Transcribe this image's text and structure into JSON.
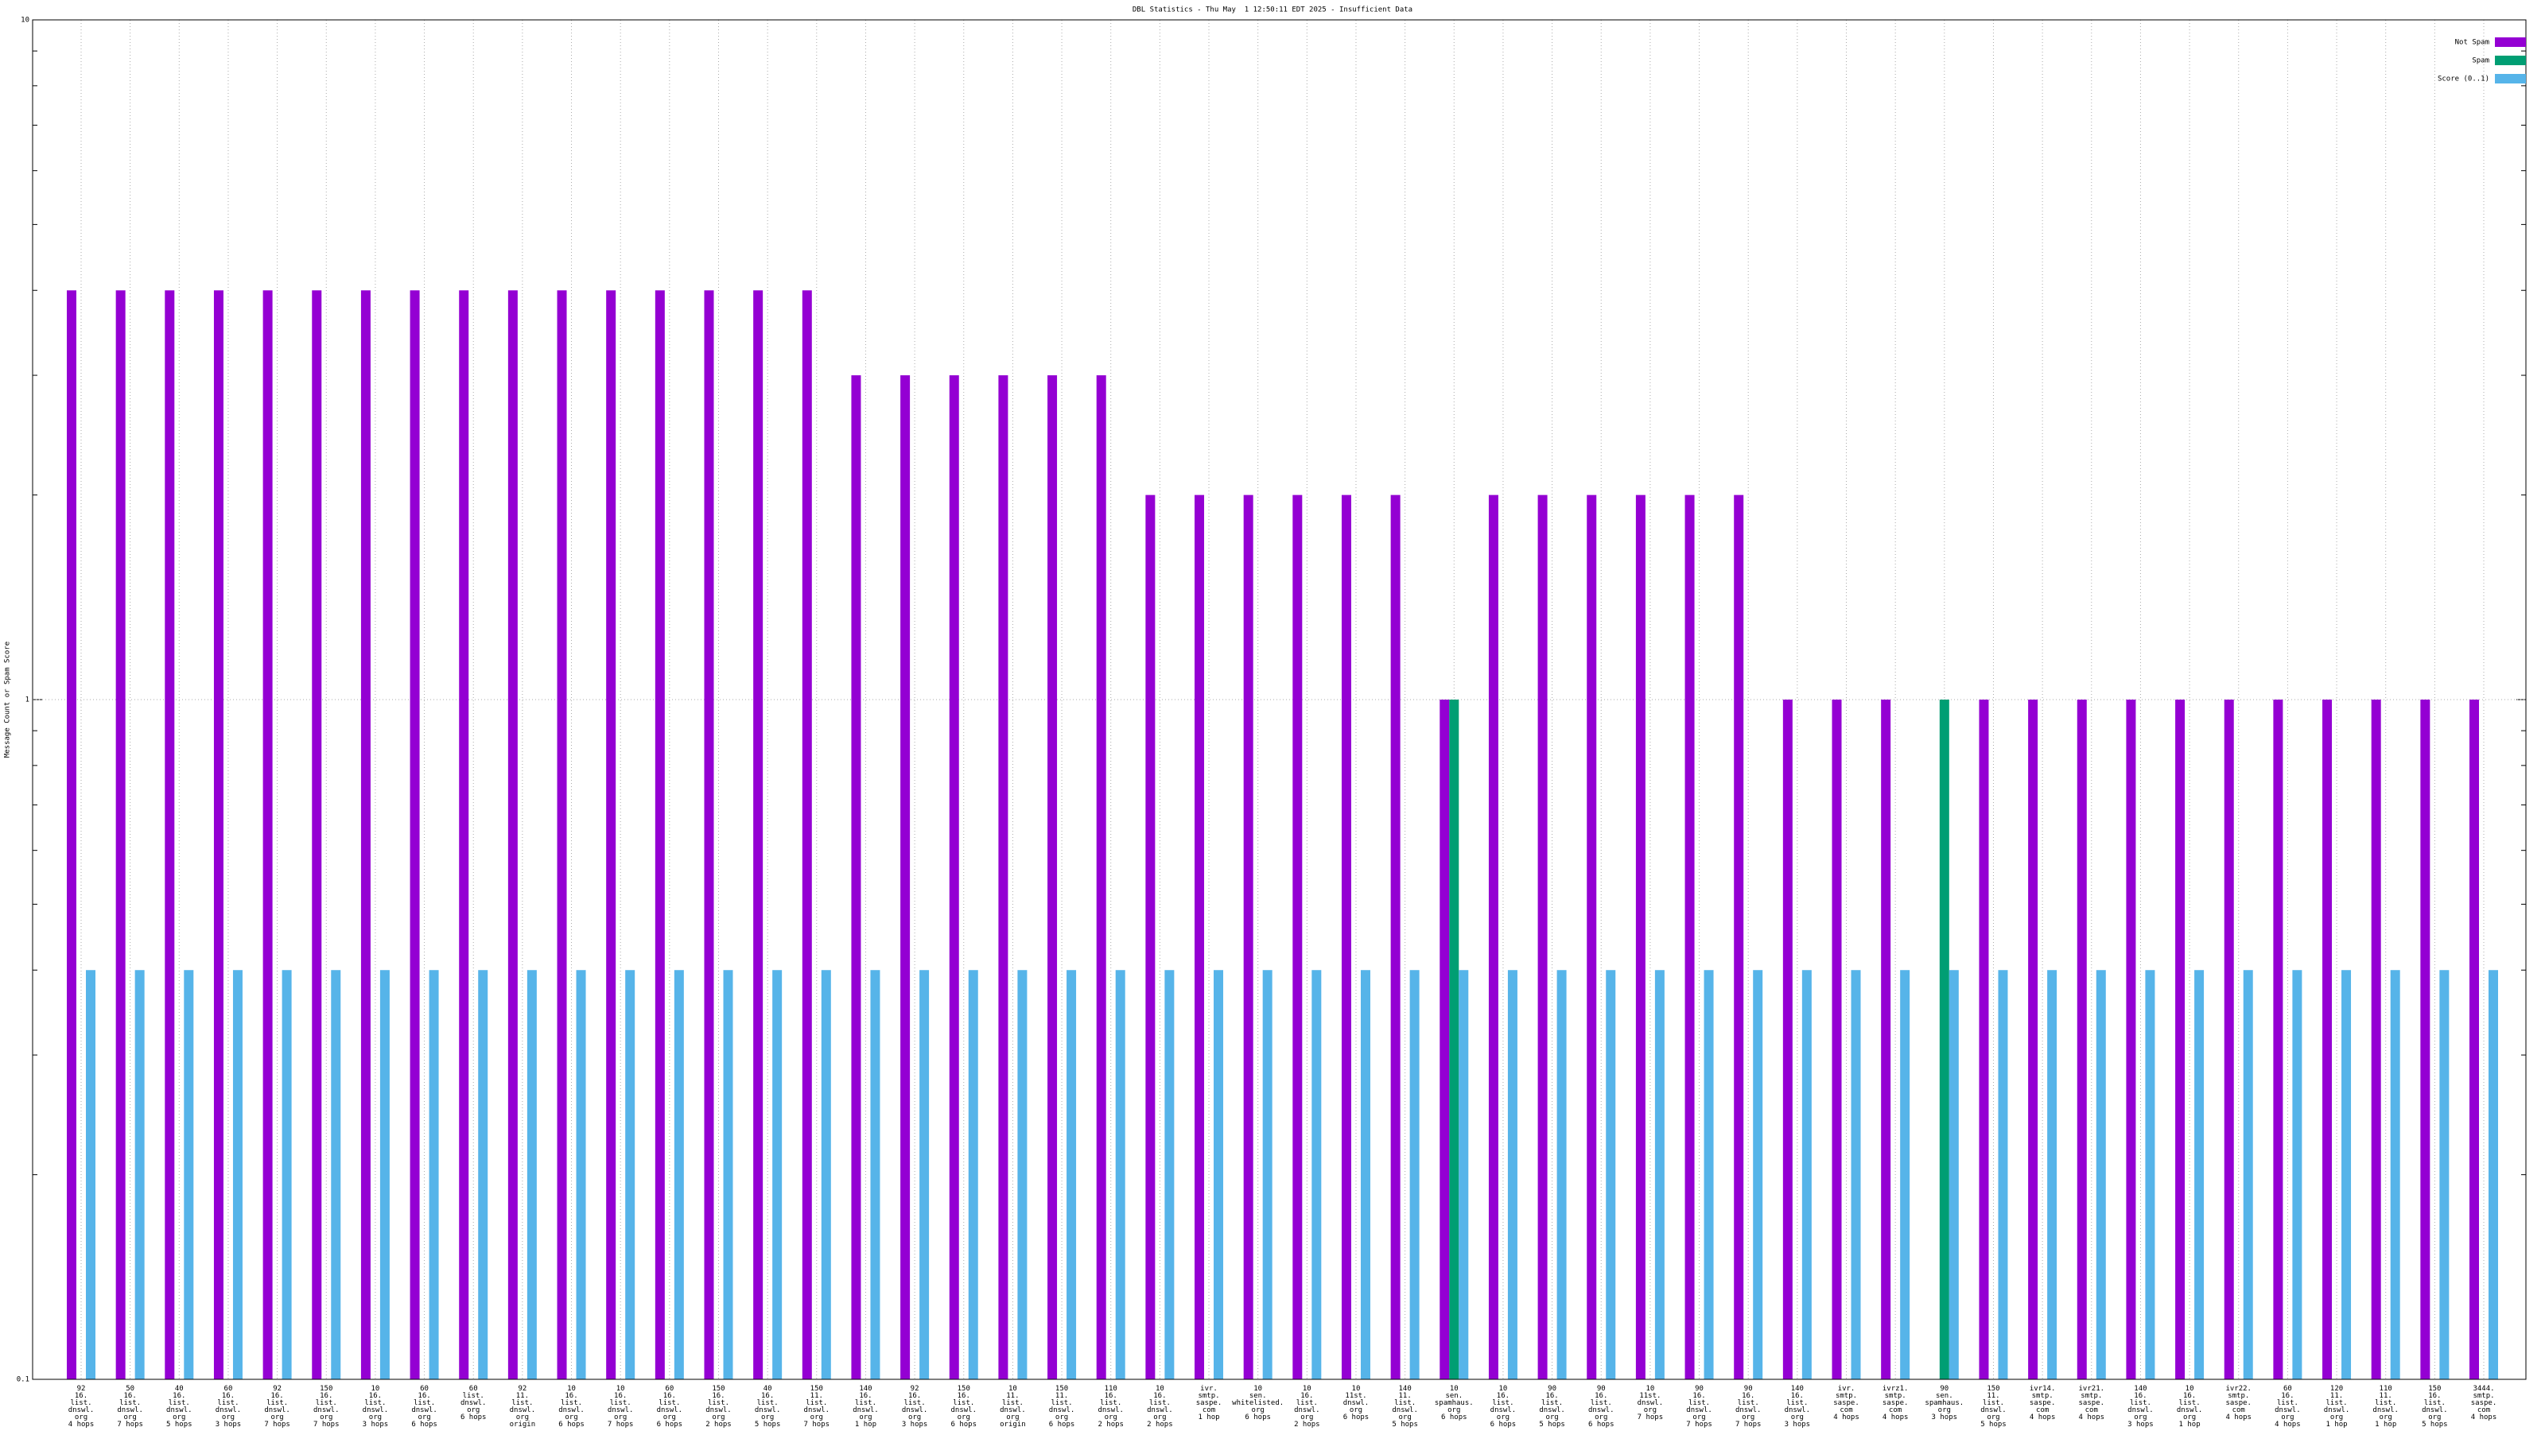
{
  "chart_data": {
    "type": "bar",
    "title": "DBL Statistics - Thu May  1 12:50:11 EDT 2025 - Insufficient Data",
    "y_label": "Message Count or Spam Score",
    "log_scale_y": true,
    "ylim": [
      0.1,
      10
    ],
    "yticks": [
      0.1,
      1,
      10
    ],
    "yminor": [
      0.2,
      0.3,
      0.4,
      0.5,
      0.6,
      0.7,
      0.8,
      0.9,
      2,
      3,
      4,
      5,
      6,
      7,
      8,
      9
    ],
    "grid": true,
    "legend": "top-right",
    "categories": [
      "92\n16.\nlist.\ndnswl.\norg\n4 hops",
      "50\n16.\nlist.\ndnswl.\norg\n7 hops",
      "40\n16.\nlist.\ndnswl.\norg\n5 hops",
      "60\n16.\nlist.\ndnswl.\norg\n3 hops",
      "92\n16.\nlist.\ndnswl.\norg\n7 hops",
      "150\n16.\nlist.\ndnswl.\norg\n7 hops",
      "10\n16.\nlist.\ndnswl.\norg\n3 hops",
      "60\n16.\nlist.\ndnswl.\norg\n6 hops",
      "60\nlist.\ndnswl.\norg\n6 hops",
      "92\n11.\nlist.\ndnswl.\norg\norigin",
      "10\n16.\nlist.\ndnswl.\norg\n6 hops",
      "10\n16.\nlist.\ndnswl.\norg\n7 hops",
      "60\n16.\nlist.\ndnswl.\norg\n6 hops",
      "150\n16.\nlist.\ndnswl.\norg\n2 hops",
      "40\n16.\nlist.\ndnswl.\norg\n5 hops",
      "150\n11.\nlist.\ndnswl.\norg\n7 hops",
      "140\n16.\nlist.\ndnswl.\norg\n1 hop",
      "92\n16.\nlist.\ndnswl.\norg\n3 hops",
      "150\n16.\nlist.\ndnswl.\norg\n6 hops",
      "10\n11.\nlist.\ndnswl.\norg\norigin",
      "150\n11.\nlist.\ndnswl.\norg\n6 hops",
      "110\n16.\nlist.\ndnswl.\norg\n2 hops",
      "10\n16.\nlist.\ndnswl.\norg\n2 hops",
      "ivr.\nsmtp.\nsaspe.\ncom\n1 hop",
      "10\nsen.\nwhitelisted.\norg\n6 hops",
      "10\n16.\nlist.\ndnswl.\norg\n2 hops",
      "10\n11st.\ndnswl.\norg\n6 hops",
      "140\n11.\nlist.\ndnswl.\norg\n5 hops",
      "10\nsen.\nspamhaus.\norg\n6 hops",
      "10\n16.\nlist.\ndnswl.\norg\n6 hops",
      "90\n16.\nlist.\ndnswl.\norg\n5 hops",
      "90\n16.\nlist.\ndnswl.\norg\n6 hops",
      "10\n11st.\ndnswl.\norg\n7 hops",
      "90\n16.\nlist.\ndnswl.\norg\n7 hops",
      "90\n16.\nlist.\ndnswl.\norg\n7 hops",
      "140\n16.\nlist.\ndnswl.\norg\n3 hops",
      "ivr.\nsmtp.\nsaspe.\ncom\n4 hops",
      "ivrz1.\nsmtp.\nsaspe.\ncom\n4 hops",
      "90\nsen.\nspamhaus.\norg\n3 hops",
      "150\n11.\nlist.\ndnswl.\norg\n5 hops",
      "ivr14.\nsmtp.\nsaspe.\ncom\n4 hops",
      "ivr21.\nsmtp.\nsaspe.\ncom\n4 hops",
      "140\n16.\nlist.\ndnswl.\norg\n3 hops",
      "10\n16.\nlist.\ndnswl.\norg\n1 hop",
      "ivr22.\nsmtp.\nsaspe.\ncom\n4 hops",
      "60\n16.\nlist.\ndnswl.\norg\n4 hops",
      "120\n11.\nlist.\ndnswl.\norg\n1 hop",
      "110\n11.\nlist.\ndnswl.\norg\n1 hop",
      "150\n16.\nlist.\ndnswl.\norg\n5 hops",
      "3444.\nsmtp.\nsaspe.\ncom\n4 hops"
    ],
    "series": [
      {
        "name": "Not Spam",
        "color": "#9400d3",
        "values": [
          4,
          4,
          4,
          4,
          4,
          4,
          4,
          4,
          4,
          4,
          4,
          4,
          4,
          4,
          4,
          4,
          3,
          3,
          3,
          3,
          3,
          3,
          2,
          2,
          2,
          2,
          2,
          2,
          1,
          2,
          2,
          2,
          2,
          2,
          2,
          1,
          1,
          1,
          null,
          1,
          1,
          1,
          1,
          1,
          1,
          1,
          1,
          1,
          1,
          1
        ]
      },
      {
        "name": "Spam",
        "color": "#009e73",
        "values": [
          null,
          null,
          null,
          null,
          null,
          null,
          null,
          null,
          null,
          null,
          null,
          null,
          null,
          null,
          null,
          null,
          null,
          null,
          null,
          null,
          null,
          null,
          null,
          null,
          null,
          null,
          null,
          null,
          1,
          null,
          null,
          null,
          null,
          null,
          null,
          null,
          null,
          null,
          1,
          null,
          null,
          null,
          null,
          null,
          null,
          null,
          null,
          null,
          null,
          null
        ]
      },
      {
        "name": "Score (0..1)",
        "color": "#56b4e9",
        "values": [
          0.4,
          0.4,
          0.4,
          0.4,
          0.4,
          0.4,
          0.4,
          0.4,
          0.4,
          0.4,
          0.4,
          0.4,
          0.4,
          0.4,
          0.4,
          0.4,
          0.4,
          0.4,
          0.4,
          0.4,
          0.4,
          0.4,
          0.4,
          0.4,
          0.4,
          0.4,
          0.4,
          0.4,
          0.4,
          0.4,
          0.4,
          0.4,
          0.4,
          0.4,
          0.4,
          0.4,
          0.4,
          0.4,
          0.4,
          0.4,
          0.4,
          0.4,
          0.4,
          0.4,
          0.4,
          0.4,
          0.4,
          0.4,
          0.4,
          0.4
        ]
      }
    ]
  }
}
